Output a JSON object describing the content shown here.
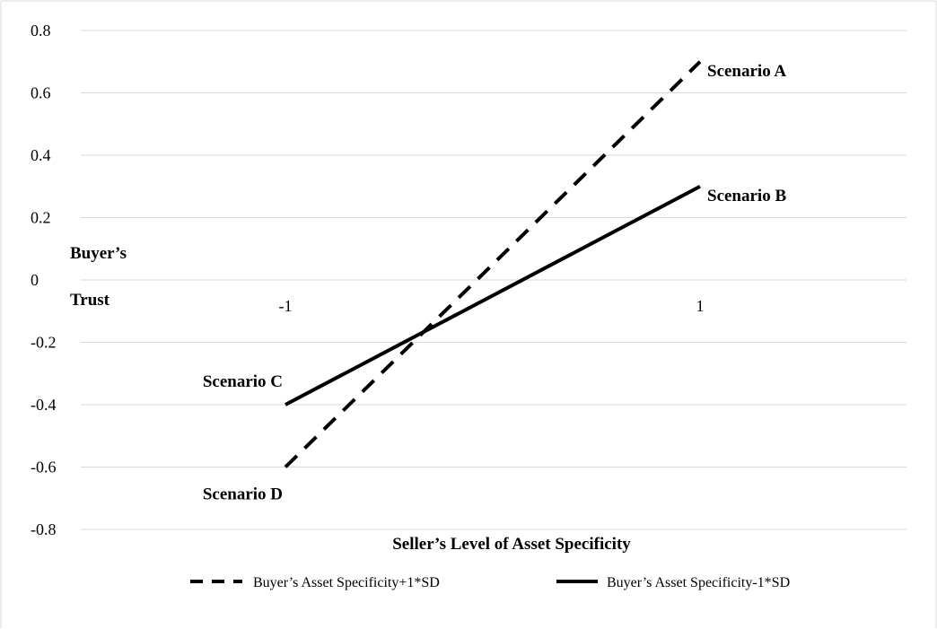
{
  "chart_data": {
    "type": "line",
    "title": "",
    "xlabel": "Seller’s Level of Asset Specificity",
    "ylabel_line1": "Buyer’s",
    "ylabel_line2": "Trust",
    "ylim": [
      -0.8,
      0.8
    ],
    "ytick_step": 0.2,
    "yticks": [
      "0.8",
      "0.6",
      "0.4",
      "0.2",
      "0",
      "-0.2",
      "-0.4",
      "-0.6",
      "-0.8"
    ],
    "x_categories": [
      "-1",
      "1"
    ],
    "grid": true,
    "series": [
      {
        "name": "Buyer’s Asset Specificity+1*SD",
        "style": "dashed",
        "x": [
          -1,
          1
        ],
        "values": [
          -0.6,
          0.7
        ]
      },
      {
        "name": "Buyer’s Asset Specificity-1*SD",
        "style": "solid",
        "x": [
          -1,
          1
        ],
        "values": [
          -0.4,
          0.3
        ]
      }
    ],
    "annotations": [
      {
        "text": "Scenario A",
        "x": 1,
        "y": 0.7,
        "anchor": "right-of-point"
      },
      {
        "text": "Scenario B",
        "x": 1,
        "y": 0.3,
        "anchor": "right-of-point"
      },
      {
        "text": "Scenario C",
        "x": -1,
        "y": -0.4,
        "anchor": "above-left"
      },
      {
        "text": "Scenario D",
        "x": -1,
        "y": -0.6,
        "anchor": "below-left"
      }
    ],
    "legend_position": "bottom",
    "line_color": "#000000",
    "grid_color": "#d9d9d9"
  }
}
